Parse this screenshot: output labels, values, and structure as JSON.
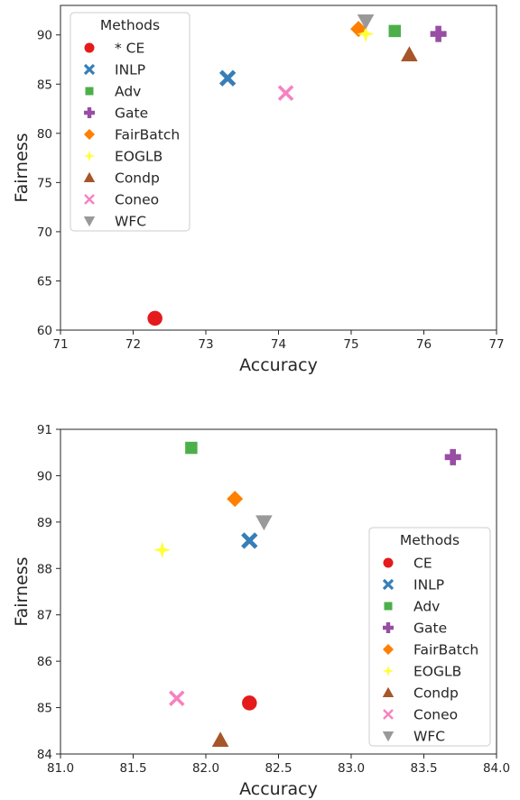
{
  "chart_data": [
    {
      "type": "scatter",
      "xlabel": "Accuracy",
      "ylabel": "Fairness",
      "xlim": [
        71,
        77
      ],
      "ylim": [
        60,
        93
      ],
      "xticks": [
        "71",
        "72",
        "73",
        "74",
        "75",
        "76",
        "77"
      ],
      "yticks": [
        "60",
        "65",
        "70",
        "75",
        "80",
        "85",
        "90"
      ],
      "grid": false,
      "legend": {
        "title": "Methods",
        "placement": "top-left"
      },
      "series": [
        {
          "name": "* CE",
          "marker": "circle",
          "color": "#e41a1c",
          "x": 72.3,
          "y": 61.2
        },
        {
          "name": "INLP",
          "marker": "x",
          "color": "#377eb8",
          "x": 73.3,
          "y": 85.6
        },
        {
          "name": "Adv",
          "marker": "square",
          "color": "#4daf4a",
          "x": 75.6,
          "y": 90.4
        },
        {
          "name": "Gate",
          "marker": "plus",
          "color": "#984ea3",
          "x": 76.2,
          "y": 90.1
        },
        {
          "name": "FairBatch",
          "marker": "diamond",
          "color": "#ff7f00",
          "x": 75.1,
          "y": 90.6
        },
        {
          "name": "EOGLB",
          "marker": "star",
          "color": "#ffff33",
          "x": 75.2,
          "y": 90.1
        },
        {
          "name": "Condp",
          "marker": "triangle-up",
          "color": "#a65628",
          "x": 75.8,
          "y": 88.0
        },
        {
          "name": "Coneo",
          "marker": "x-thin",
          "color": "#f781bf",
          "x": 74.1,
          "y": 84.1
        },
        {
          "name": "WFC",
          "marker": "triangle-down",
          "color": "#999999",
          "x": 75.2,
          "y": 91.4
        }
      ]
    },
    {
      "type": "scatter",
      "xlabel": "Accuracy",
      "ylabel": "Fairness",
      "xlim": [
        81.0,
        84.0
      ],
      "ylim": [
        84,
        91
      ],
      "xticks": [
        "81.0",
        "81.5",
        "82.0",
        "82.5",
        "83.0",
        "83.5",
        "84.0"
      ],
      "yticks": [
        "84",
        "85",
        "86",
        "87",
        "88",
        "89",
        "90",
        "91"
      ],
      "grid": false,
      "legend": {
        "title": "Methods",
        "placement": "lower-right"
      },
      "series": [
        {
          "name": "CE",
          "marker": "circle",
          "color": "#e41a1c",
          "x": 82.3,
          "y": 85.1
        },
        {
          "name": "INLP",
          "marker": "x",
          "color": "#377eb8",
          "x": 82.3,
          "y": 88.6
        },
        {
          "name": "Adv",
          "marker": "square",
          "color": "#4daf4a",
          "x": 81.9,
          "y": 90.6
        },
        {
          "name": "Gate",
          "marker": "plus",
          "color": "#984ea3",
          "x": 83.7,
          "y": 90.4
        },
        {
          "name": "FairBatch",
          "marker": "diamond",
          "color": "#ff7f00",
          "x": 82.2,
          "y": 89.5
        },
        {
          "name": "EOGLB",
          "marker": "star",
          "color": "#ffff33",
          "x": 81.7,
          "y": 88.4
        },
        {
          "name": "Condp",
          "marker": "triangle-up",
          "color": "#a65628",
          "x": 82.1,
          "y": 84.3
        },
        {
          "name": "Coneo",
          "marker": "x-thin",
          "color": "#f781bf",
          "x": 81.8,
          "y": 85.2
        },
        {
          "name": "WFC",
          "marker": "triangle-down",
          "color": "#999999",
          "x": 82.4,
          "y": 89.0
        }
      ]
    }
  ]
}
